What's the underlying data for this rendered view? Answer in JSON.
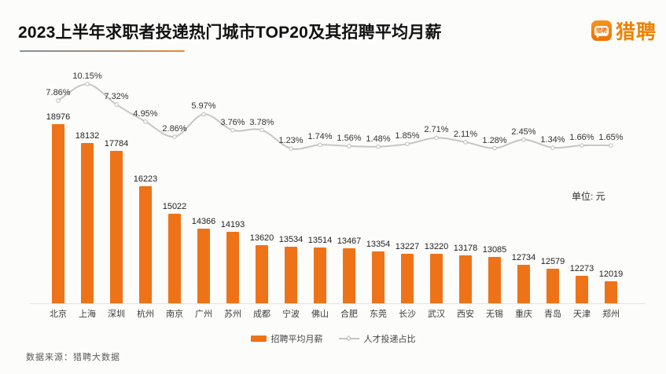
{
  "title": "2023上半年求职者投递热门城市TOP20及其招聘平均月薪",
  "logo": {
    "brand": "猎聘",
    "icon_text": "猎聘",
    "color": "#ee8200"
  },
  "unit_label": "单位: 元",
  "legend": [
    {
      "label": "招聘平均月薪",
      "type": "bar",
      "color": "#ee7318"
    },
    {
      "label": "人才投递占比",
      "type": "line",
      "color": "#c4c4c4"
    }
  ],
  "footer": "数据来源：猎聘大数据",
  "chart_data": {
    "type": "bar+line",
    "title": "2023上半年求职者投递热门城市TOP20及其招聘平均月薪",
    "categories": [
      "北京",
      "上海",
      "深圳",
      "杭州",
      "南京",
      "广州",
      "苏州",
      "成都",
      "宁波",
      "佛山",
      "合肥",
      "东莞",
      "长沙",
      "武汉",
      "西安",
      "无锡",
      "重庆",
      "青岛",
      "天津",
      "郑州"
    ],
    "series": [
      {
        "name": "招聘平均月薪",
        "type": "bar",
        "unit": "元",
        "values": [
          18976,
          18132,
          17784,
          16223,
          15022,
          14366,
          14193,
          13620,
          13534,
          13514,
          13467,
          13354,
          13227,
          13220,
          13178,
          13085,
          12734,
          12579,
          12273,
          12019
        ]
      },
      {
        "name": "人才投递占比",
        "type": "line",
        "unit": "%",
        "values": [
          7.86,
          10.15,
          7.32,
          4.95,
          2.86,
          5.97,
          3.76,
          3.78,
          1.23,
          1.74,
          1.56,
          1.48,
          1.85,
          2.71,
          2.11,
          1.28,
          2.45,
          1.34,
          1.66,
          1.65
        ]
      }
    ],
    "legend_position": "bottom",
    "grid": false,
    "bar_axis_baseline_value": 11045,
    "value_labels_shown": true
  }
}
